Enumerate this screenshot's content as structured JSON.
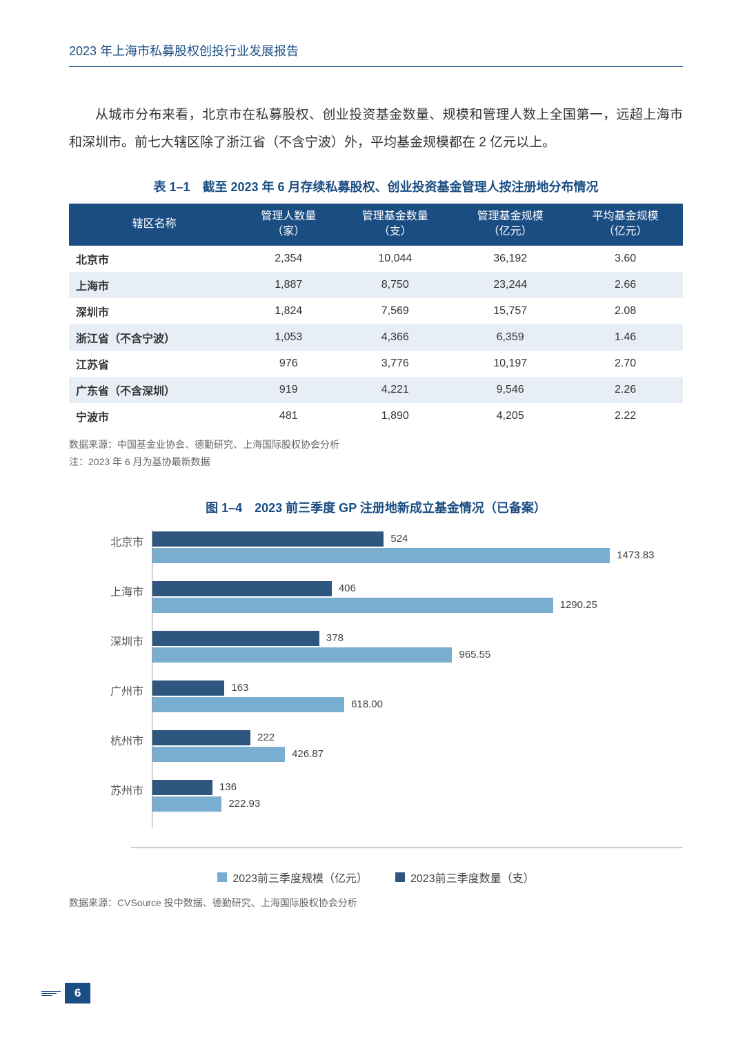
{
  "header": {
    "title": "2023 年上海市私募股权创投行业发展报告"
  },
  "paragraph": "从城市分布来看，北京市在私募股权、创业投资基金数量、规模和管理人数上全国第一，远超上海市和深圳市。前七大辖区除了浙江省（不含宁波）外，平均基金规模都在 2 亿元以上。",
  "table": {
    "title": "表 1–1　截至 2023 年 6 月存续私募股权、创业投资基金管理人按注册地分布情况",
    "columns": [
      "辖区名称",
      "管理人数量\n（家）",
      "管理基金数量\n（支）",
      "管理基金规模\n（亿元）",
      "平均基金规模\n（亿元）"
    ],
    "rows": [
      [
        "北京市",
        "2,354",
        "10,044",
        "36,192",
        "3.60"
      ],
      [
        "上海市",
        "1,887",
        "8,750",
        "23,244",
        "2.66"
      ],
      [
        "深圳市",
        "1,824",
        "7,569",
        "15,757",
        "2.08"
      ],
      [
        "浙江省（不含宁波）",
        "1,053",
        "4,366",
        "6,359",
        "1.46"
      ],
      [
        "江苏省",
        "976",
        "3,776",
        "10,197",
        "2.70"
      ],
      [
        "广东省（不含深圳）",
        "919",
        "4,221",
        "9,546",
        "2.26"
      ],
      [
        "宁波市",
        "481",
        "1,890",
        "4,205",
        "2.22"
      ]
    ],
    "header_bg": "#1a4d82",
    "header_fg": "#ffffff",
    "row_even_bg": "#e8eef5",
    "row_odd_bg": "#ffffff",
    "source": "数据来源：中国基金业协会、德勤研究、上海国际股权协会分析",
    "note": "注：2023 年 6 月为基协最新数据"
  },
  "chart": {
    "title": "图 1–4　2023 前三季度 GP 注册地新成立基金情况（已备案）",
    "type": "grouped horizontal bar",
    "categories": [
      "北京市",
      "上海市",
      "深圳市",
      "广州市",
      "杭州市",
      "苏州市"
    ],
    "series": [
      {
        "name": "2023前三季度数量（支）",
        "color": "#2f567f",
        "values": [
          524,
          406,
          378,
          163,
          222,
          136
        ]
      },
      {
        "name": "2023前三季度规模（亿元）",
        "color": "#7aaed0",
        "values": [
          1473.83,
          1290.25,
          965.55,
          618.0,
          426.87,
          222.93
        ]
      }
    ],
    "legend_order": [
      "2023前三季度规模（亿元）",
      "2023前三季度数量（支）"
    ],
    "x_max_count": 540,
    "x_max_scale": 1600,
    "axis_color": "#999999",
    "label_fontsize": 15,
    "category_fontsize": 16,
    "background_color": "#ffffff",
    "source": "数据来源：CVSource 投中数据、德勤研究、上海国际股权协会分析"
  },
  "footer": {
    "page_number": "6"
  }
}
